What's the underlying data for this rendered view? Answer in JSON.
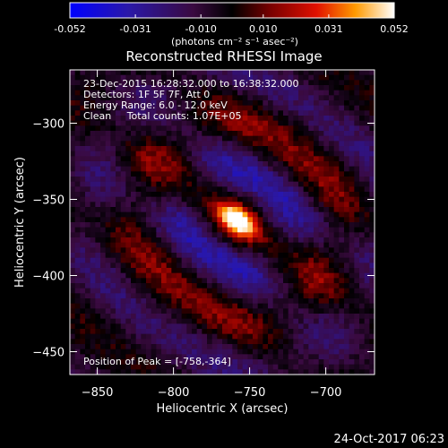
{
  "colorbar": {
    "ticks": [
      "-0.052",
      "-0.031",
      "-0.010",
      "0.010",
      "0.031",
      "0.052"
    ],
    "values": [
      -0.052,
      -0.031,
      -0.01,
      0.01,
      0.031,
      0.052
    ],
    "unit_label": "(photons cm⁻² s⁻¹ asec⁻²)"
  },
  "chart_data": {
    "type": "heatmap",
    "title": "Reconstructed RHESSI Image",
    "xlabel": "Heliocentric X (arcsec)",
    "ylabel": "Heliocentric Y (arcsec)",
    "xlim": [
      -868,
      -668
    ],
    "ylim": [
      -465,
      -265
    ],
    "x_ticks": [
      -850,
      -800,
      -750,
      -700
    ],
    "y_ticks": [
      -300,
      -350,
      -400,
      -450
    ],
    "colormap": "red-temperature",
    "value_range": [
      -0.052,
      0.052
    ],
    "annotations": [
      "23-Dec-2015 16:28:32.000 to 16:38:32.000",
      "Detectors: 1F 5F 7F, Att 0",
      "Energy Range: 6.0 - 12.0 keV",
      "Clean     Total counts: 1.07E+05"
    ],
    "peak": {
      "x": -758,
      "y": -364,
      "label": "Position of Peak = [-758,-364]"
    }
  },
  "timestamp": "24-Oct-2017 06:23"
}
